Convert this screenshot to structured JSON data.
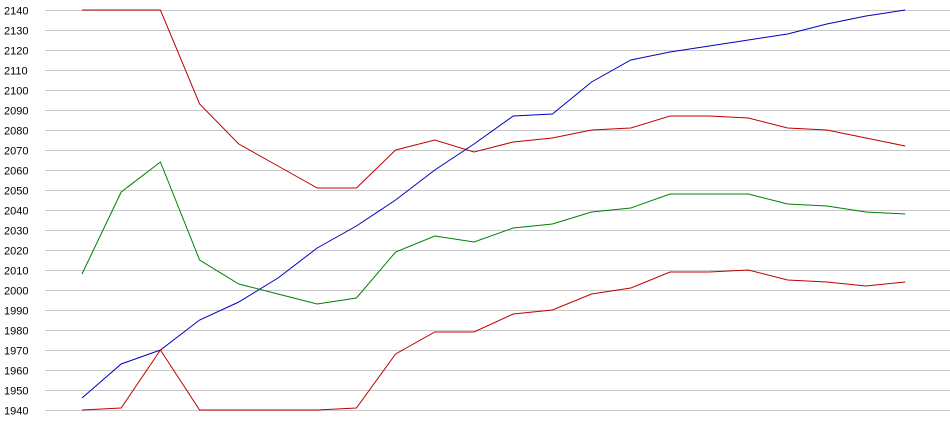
{
  "chart_data": {
    "type": "line",
    "title": "",
    "xlabel": "",
    "ylabel": "",
    "ylim": [
      1940,
      2140
    ],
    "yticks": [
      1940,
      1950,
      1960,
      1970,
      1980,
      1990,
      2000,
      2010,
      2020,
      2030,
      2040,
      2050,
      2060,
      2070,
      2080,
      2090,
      2100,
      2110,
      2120,
      2130,
      2140
    ],
    "grid": true,
    "legend": "none",
    "x": [
      1,
      2,
      3,
      4,
      5,
      6,
      7,
      8,
      9,
      10,
      11,
      12,
      13,
      14,
      15,
      16,
      17,
      18,
      19,
      20,
      21,
      22
    ],
    "series": [
      {
        "color": "#c00000",
        "values": [
          2140,
          2140,
          2140,
          2093,
          2073,
          2062,
          2051,
          2051,
          2070,
          2075,
          2069,
          2074,
          2076,
          2080,
          2081,
          2087,
          2087,
          2086,
          2081,
          2080,
          2076,
          2072
        ]
      },
      {
        "color": "#0000c0",
        "values": [
          1946,
          1963,
          1970,
          1985,
          1994,
          2006,
          2021,
          2032,
          2045,
          2060,
          2073,
          2087,
          2088,
          2104,
          2115,
          2119,
          2122,
          2125,
          2128,
          2133,
          2137,
          2140
        ]
      },
      {
        "color": "#008000",
        "values": [
          2008,
          2049,
          2064,
          2015,
          2003,
          1998,
          1993,
          1996,
          2019,
          2027,
          2024,
          2031,
          2033,
          2039,
          2041,
          2048,
          2048,
          2048,
          2043,
          2042,
          2039,
          2038
        ]
      },
      {
        "color": "#c00000",
        "values": [
          1940,
          1941,
          1970,
          1940,
          1940,
          1940,
          1940,
          1941,
          1968,
          1979,
          1979,
          1988,
          1990,
          1998,
          2001,
          2009,
          2009,
          2010,
          2005,
          2004,
          2002,
          2004
        ]
      }
    ]
  }
}
